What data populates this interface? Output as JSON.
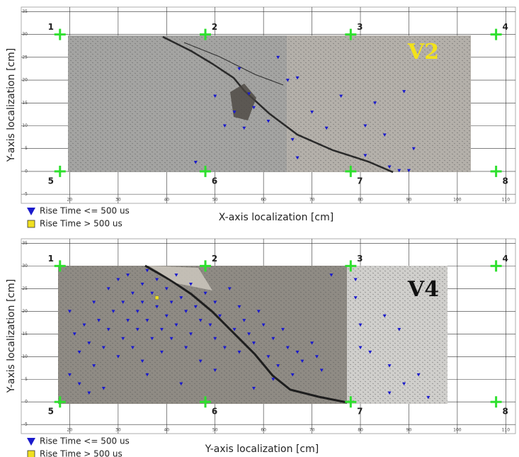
{
  "chart_data": [
    {
      "type": "scatter",
      "title": "V2",
      "title_color": "#f2e21a",
      "xlabel": "X-axis localization [cm]",
      "ylabel": "Y-axis localization [cm]",
      "xlim": [
        10,
        112
      ],
      "ylim": [
        -7,
        36
      ],
      "xticks": [
        20,
        30,
        40,
        50,
        60,
        70,
        80,
        90,
        100,
        110
      ],
      "yticks": [
        -5,
        0,
        5,
        10,
        15,
        20,
        25,
        30,
        35
      ],
      "grid": true,
      "sensors": {
        "labels": [
          "1",
          "2",
          "3",
          "4",
          "5",
          "6",
          "7",
          "8"
        ],
        "x": [
          18,
          48,
          78,
          108,
          18,
          48,
          78,
          108
        ],
        "y": [
          30,
          30,
          30,
          30,
          0,
          0,
          0,
          0
        ],
        "color": "#2ee02e"
      },
      "series": [
        {
          "name": "Rise Time <= 500 us",
          "color": "#1a1acc",
          "marker": "triangle",
          "x": [
            63,
            55,
            65,
            67,
            57,
            50,
            76,
            89,
            83,
            58,
            61,
            56,
            52,
            73,
            81,
            85,
            66,
            91,
            67,
            81,
            86,
            88,
            90,
            46,
            54,
            70
          ],
          "y": [
            25,
            22.5,
            20,
            20.5,
            17,
            16.5,
            16.5,
            17.5,
            15,
            14,
            11,
            9.5,
            10,
            9.5,
            10,
            8,
            7,
            5,
            3,
            3.5,
            1,
            0.2,
            0.2,
            2,
            13,
            13
          ]
        },
        {
          "name": "Rise Time > 500 us",
          "color": "#f0e020",
          "marker": "square",
          "x": [],
          "y": []
        }
      ]
    },
    {
      "type": "scatter",
      "title": "V4",
      "title_color": "#111111",
      "xlabel": "Y-axis localization [cm]",
      "ylabel": "Y-axis localization [cm]",
      "xlim": [
        10,
        112
      ],
      "ylim": [
        -7,
        36
      ],
      "xticks": [
        20,
        30,
        40,
        50,
        60,
        70,
        80,
        90,
        100,
        110
      ],
      "yticks": [
        -5,
        0,
        5,
        10,
        15,
        20,
        25,
        30,
        35
      ],
      "grid": true,
      "sensors": {
        "labels": [
          "1",
          "2",
          "3",
          "4",
          "5",
          "6",
          "7",
          "8"
        ],
        "x": [
          18,
          48,
          78,
          108,
          18,
          48,
          78,
          108
        ],
        "y": [
          30,
          30,
          30,
          30,
          0,
          0,
          0,
          0
        ],
        "color": "#2ee02e"
      },
      "series": [
        {
          "name": "Rise Time <= 500 us",
          "color": "#1a1acc",
          "marker": "triangle",
          "x": [
            20,
            21,
            22,
            22,
            23,
            24,
            25,
            25,
            26,
            27,
            28,
            28,
            29,
            30,
            30,
            31,
            31,
            32,
            32,
            33,
            33,
            34,
            34,
            35,
            35,
            35,
            36,
            36,
            37,
            37,
            38,
            38,
            39,
            39,
            40,
            40,
            41,
            41,
            42,
            42,
            43,
            44,
            44,
            45,
            45,
            46,
            47,
            47,
            48,
            49,
            50,
            50,
            51,
            52,
            53,
            54,
            55,
            55,
            56,
            57,
            58,
            59,
            60,
            61,
            62,
            63,
            64,
            65,
            66,
            67,
            68,
            70,
            72,
            74,
            20,
            24,
            27,
            36,
            43,
            50,
            58,
            62,
            71,
            79,
            80,
            80,
            82,
            85,
            86,
            88,
            89,
            92,
            94,
            86,
            79
          ],
          "y": [
            20,
            15,
            4,
            11,
            17,
            13,
            8,
            22,
            18,
            12,
            25,
            16,
            20,
            10,
            27,
            14,
            22,
            18,
            28,
            24,
            12,
            20,
            16,
            26,
            22,
            9,
            18,
            29,
            14,
            24,
            21,
            27,
            16,
            11,
            25,
            19,
            22,
            14,
            28,
            17,
            23,
            20,
            12,
            26,
            15,
            21,
            18,
            9,
            24,
            17,
            22,
            14,
            19,
            12,
            25,
            16,
            21,
            11,
            18,
            15,
            13,
            20,
            17,
            10,
            14,
            8,
            16,
            12,
            6,
            11,
            9,
            13,
            7,
            28,
            6,
            2,
            3,
            6,
            4,
            7,
            3,
            5,
            10,
            23,
            17,
            12,
            11,
            19,
            8,
            16,
            4,
            6,
            1,
            2,
            27
          ]
        },
        {
          "name": "Rise Time > 500 us",
          "color": "#f0e020",
          "marker": "square",
          "x": [
            38
          ],
          "y": [
            23
          ]
        }
      ]
    }
  ]
}
